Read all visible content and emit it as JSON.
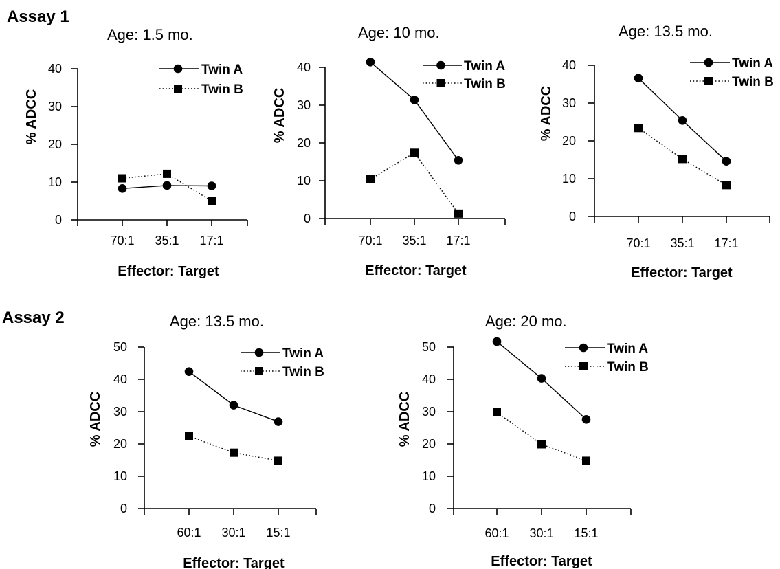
{
  "sections": [
    {
      "label": "Assay 1"
    },
    {
      "label": "Assay 2"
    }
  ],
  "colors": {
    "marker": "#000000",
    "background": "#ffffff"
  },
  "chart_data": [
    {
      "type": "line",
      "section": "Assay 1",
      "title": "Age: 1.5 mo.",
      "xlabel": "Effector: Target",
      "ylabel": "% ADCC",
      "categories": [
        "70:1",
        "35:1",
        "17:1"
      ],
      "ylim": [
        0,
        45
      ],
      "yticks": [
        0,
        10,
        20,
        30,
        40
      ],
      "series": [
        {
          "name": "Twin A",
          "values": [
            8.3,
            9.1,
            9.0
          ],
          "marker": "circle",
          "line": "solid"
        },
        {
          "name": "Twin B",
          "values": [
            11.0,
            12.2,
            5.0
          ],
          "marker": "square",
          "line": "dotted"
        }
      ],
      "legend": "top-right",
      "grid": false
    },
    {
      "type": "line",
      "section": "Assay 1",
      "title": "Age: 10 mo.",
      "xlabel": "Effector: Target",
      "ylabel": "% ADCC",
      "categories": [
        "70:1",
        "35:1",
        "17:1"
      ],
      "ylim": [
        0,
        45
      ],
      "yticks": [
        0,
        10,
        20,
        30,
        40
      ],
      "series": [
        {
          "name": "Twin A",
          "values": [
            41.4,
            31.4,
            15.4
          ],
          "marker": "circle",
          "line": "solid"
        },
        {
          "name": "Twin B",
          "values": [
            10.4,
            17.4,
            1.3
          ],
          "marker": "square",
          "line": "dotted"
        }
      ],
      "legend": "top-right",
      "grid": false
    },
    {
      "type": "line",
      "section": "Assay 1",
      "title": "Age: 13.5 mo.",
      "xlabel": "Effector: Target",
      "ylabel": "% ADCC",
      "categories": [
        "70:1",
        "35:1",
        "17:1"
      ],
      "ylim": [
        0,
        45
      ],
      "yticks": [
        0,
        10,
        20,
        30,
        40
      ],
      "series": [
        {
          "name": "Twin A",
          "values": [
            36.6,
            25.4,
            14.6
          ],
          "marker": "circle",
          "line": "solid"
        },
        {
          "name": "Twin B",
          "values": [
            23.4,
            15.2,
            8.3
          ],
          "marker": "square",
          "line": "dotted"
        }
      ],
      "legend": "top-right",
      "grid": false
    },
    {
      "type": "line",
      "section": "Assay 2",
      "title": "Age: 13.5 mo.",
      "xlabel": "Effector: Target",
      "ylabel": "% ADCC",
      "categories": [
        "60:1",
        "30:1",
        "15:1"
      ],
      "ylim": [
        0,
        55
      ],
      "yticks": [
        0,
        10,
        20,
        30,
        40,
        50
      ],
      "series": [
        {
          "name": "Twin A",
          "values": [
            42.4,
            32.0,
            26.9
          ],
          "marker": "circle",
          "line": "solid"
        },
        {
          "name": "Twin B",
          "values": [
            22.4,
            17.3,
            14.8
          ],
          "marker": "square",
          "line": "dotted"
        }
      ],
      "legend": "top-right",
      "grid": false
    },
    {
      "type": "line",
      "section": "Assay 2",
      "title": "Age: 20 mo.",
      "xlabel": "Effector: Target",
      "ylabel": "% ADCC",
      "categories": [
        "60:1",
        "30:1",
        "15:1"
      ],
      "ylim": [
        0,
        55
      ],
      "yticks": [
        0,
        10,
        20,
        30,
        40,
        50
      ],
      "series": [
        {
          "name": "Twin A",
          "values": [
            51.7,
            40.3,
            27.6
          ],
          "marker": "circle",
          "line": "solid"
        },
        {
          "name": "Twin B",
          "values": [
            29.8,
            19.9,
            14.8
          ],
          "marker": "square",
          "line": "dotted"
        }
      ],
      "legend": "top-right",
      "grid": false
    }
  ]
}
